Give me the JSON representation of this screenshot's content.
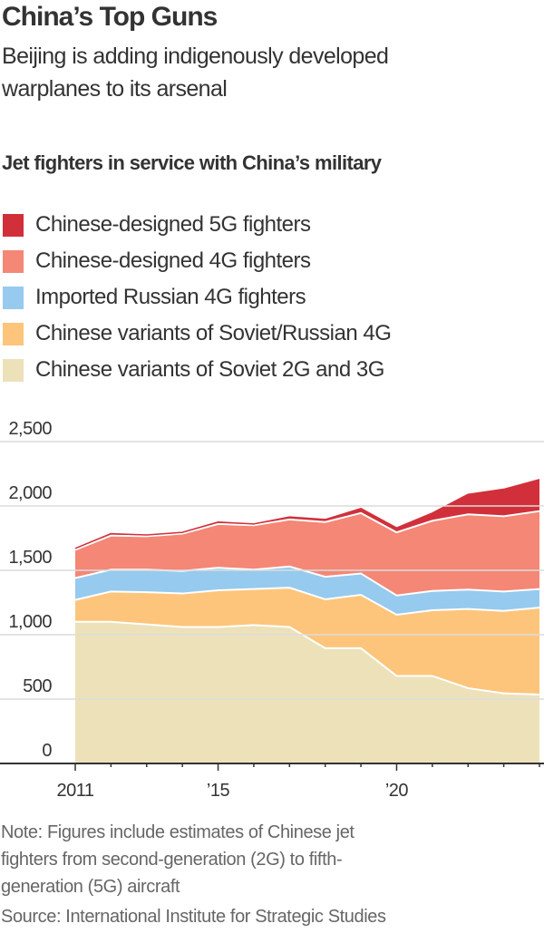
{
  "header": {
    "title": "China’s Top Guns",
    "subtitle_lines": [
      "Beijing is adding indigenously developed",
      "warplanes to its arsenal"
    ]
  },
  "chart_data": {
    "type": "area",
    "stacked": true,
    "title": "Jet fighters in service with China’s military",
    "x": [
      2011,
      2012,
      2013,
      2014,
      2015,
      2016,
      2017,
      2018,
      2019,
      2020,
      2021,
      2022,
      2023,
      2024
    ],
    "x_tick_labels": [
      {
        "year": 2011,
        "label": "2011"
      },
      {
        "year": 2015,
        "label": "’15"
      },
      {
        "year": 2020,
        "label": "’20"
      }
    ],
    "ylim": [
      0,
      2500
    ],
    "y_ticks": [
      0,
      500,
      1000,
      1500,
      2000,
      2500
    ],
    "y_tick_labels": [
      "0",
      "500",
      "1,000",
      "1,500",
      "2,000",
      "2,500"
    ],
    "grid": true,
    "legend_position": "top",
    "series": [
      {
        "name": "Chinese variants of Soviet 2G and 3G",
        "color": "#ede1ba",
        "values": [
          1100,
          1100,
          1080,
          1060,
          1060,
          1075,
          1060,
          895,
          895,
          680,
          680,
          585,
          545,
          535
        ]
      },
      {
        "name": "Chinese variants of Soviet/Russian 4G",
        "color": "#fdc57b",
        "values": [
          170,
          235,
          250,
          260,
          285,
          280,
          305,
          380,
          415,
          475,
          510,
          615,
          640,
          675
        ]
      },
      {
        "name": "Imported Russian 4G fighters",
        "color": "#96caee",
        "values": [
          170,
          170,
          175,
          175,
          175,
          150,
          165,
          175,
          165,
          150,
          150,
          150,
          150,
          145
        ]
      },
      {
        "name": "Chinese-designed 4G fighters",
        "color": "#f48776",
        "values": [
          220,
          265,
          260,
          290,
          340,
          345,
          365,
          425,
          470,
          490,
          545,
          585,
          585,
          605
        ]
      },
      {
        "name": "Chinese-designed 5G fighters",
        "color": "#d1303b",
        "values": [
          10,
          15,
          10,
          10,
          15,
          10,
          20,
          20,
          35,
          35,
          60,
          155,
          210,
          245
        ]
      }
    ]
  },
  "legend_order": [
    4,
    3,
    2,
    1,
    0
  ],
  "footer": {
    "note_lines": [
      "Note: Figures include estimates of Chinese jet",
      "fighters from second-generation (2G) to fifth-",
      "generation (5G) aircraft"
    ],
    "source": "Source: International Institute for Strategic Studies"
  }
}
